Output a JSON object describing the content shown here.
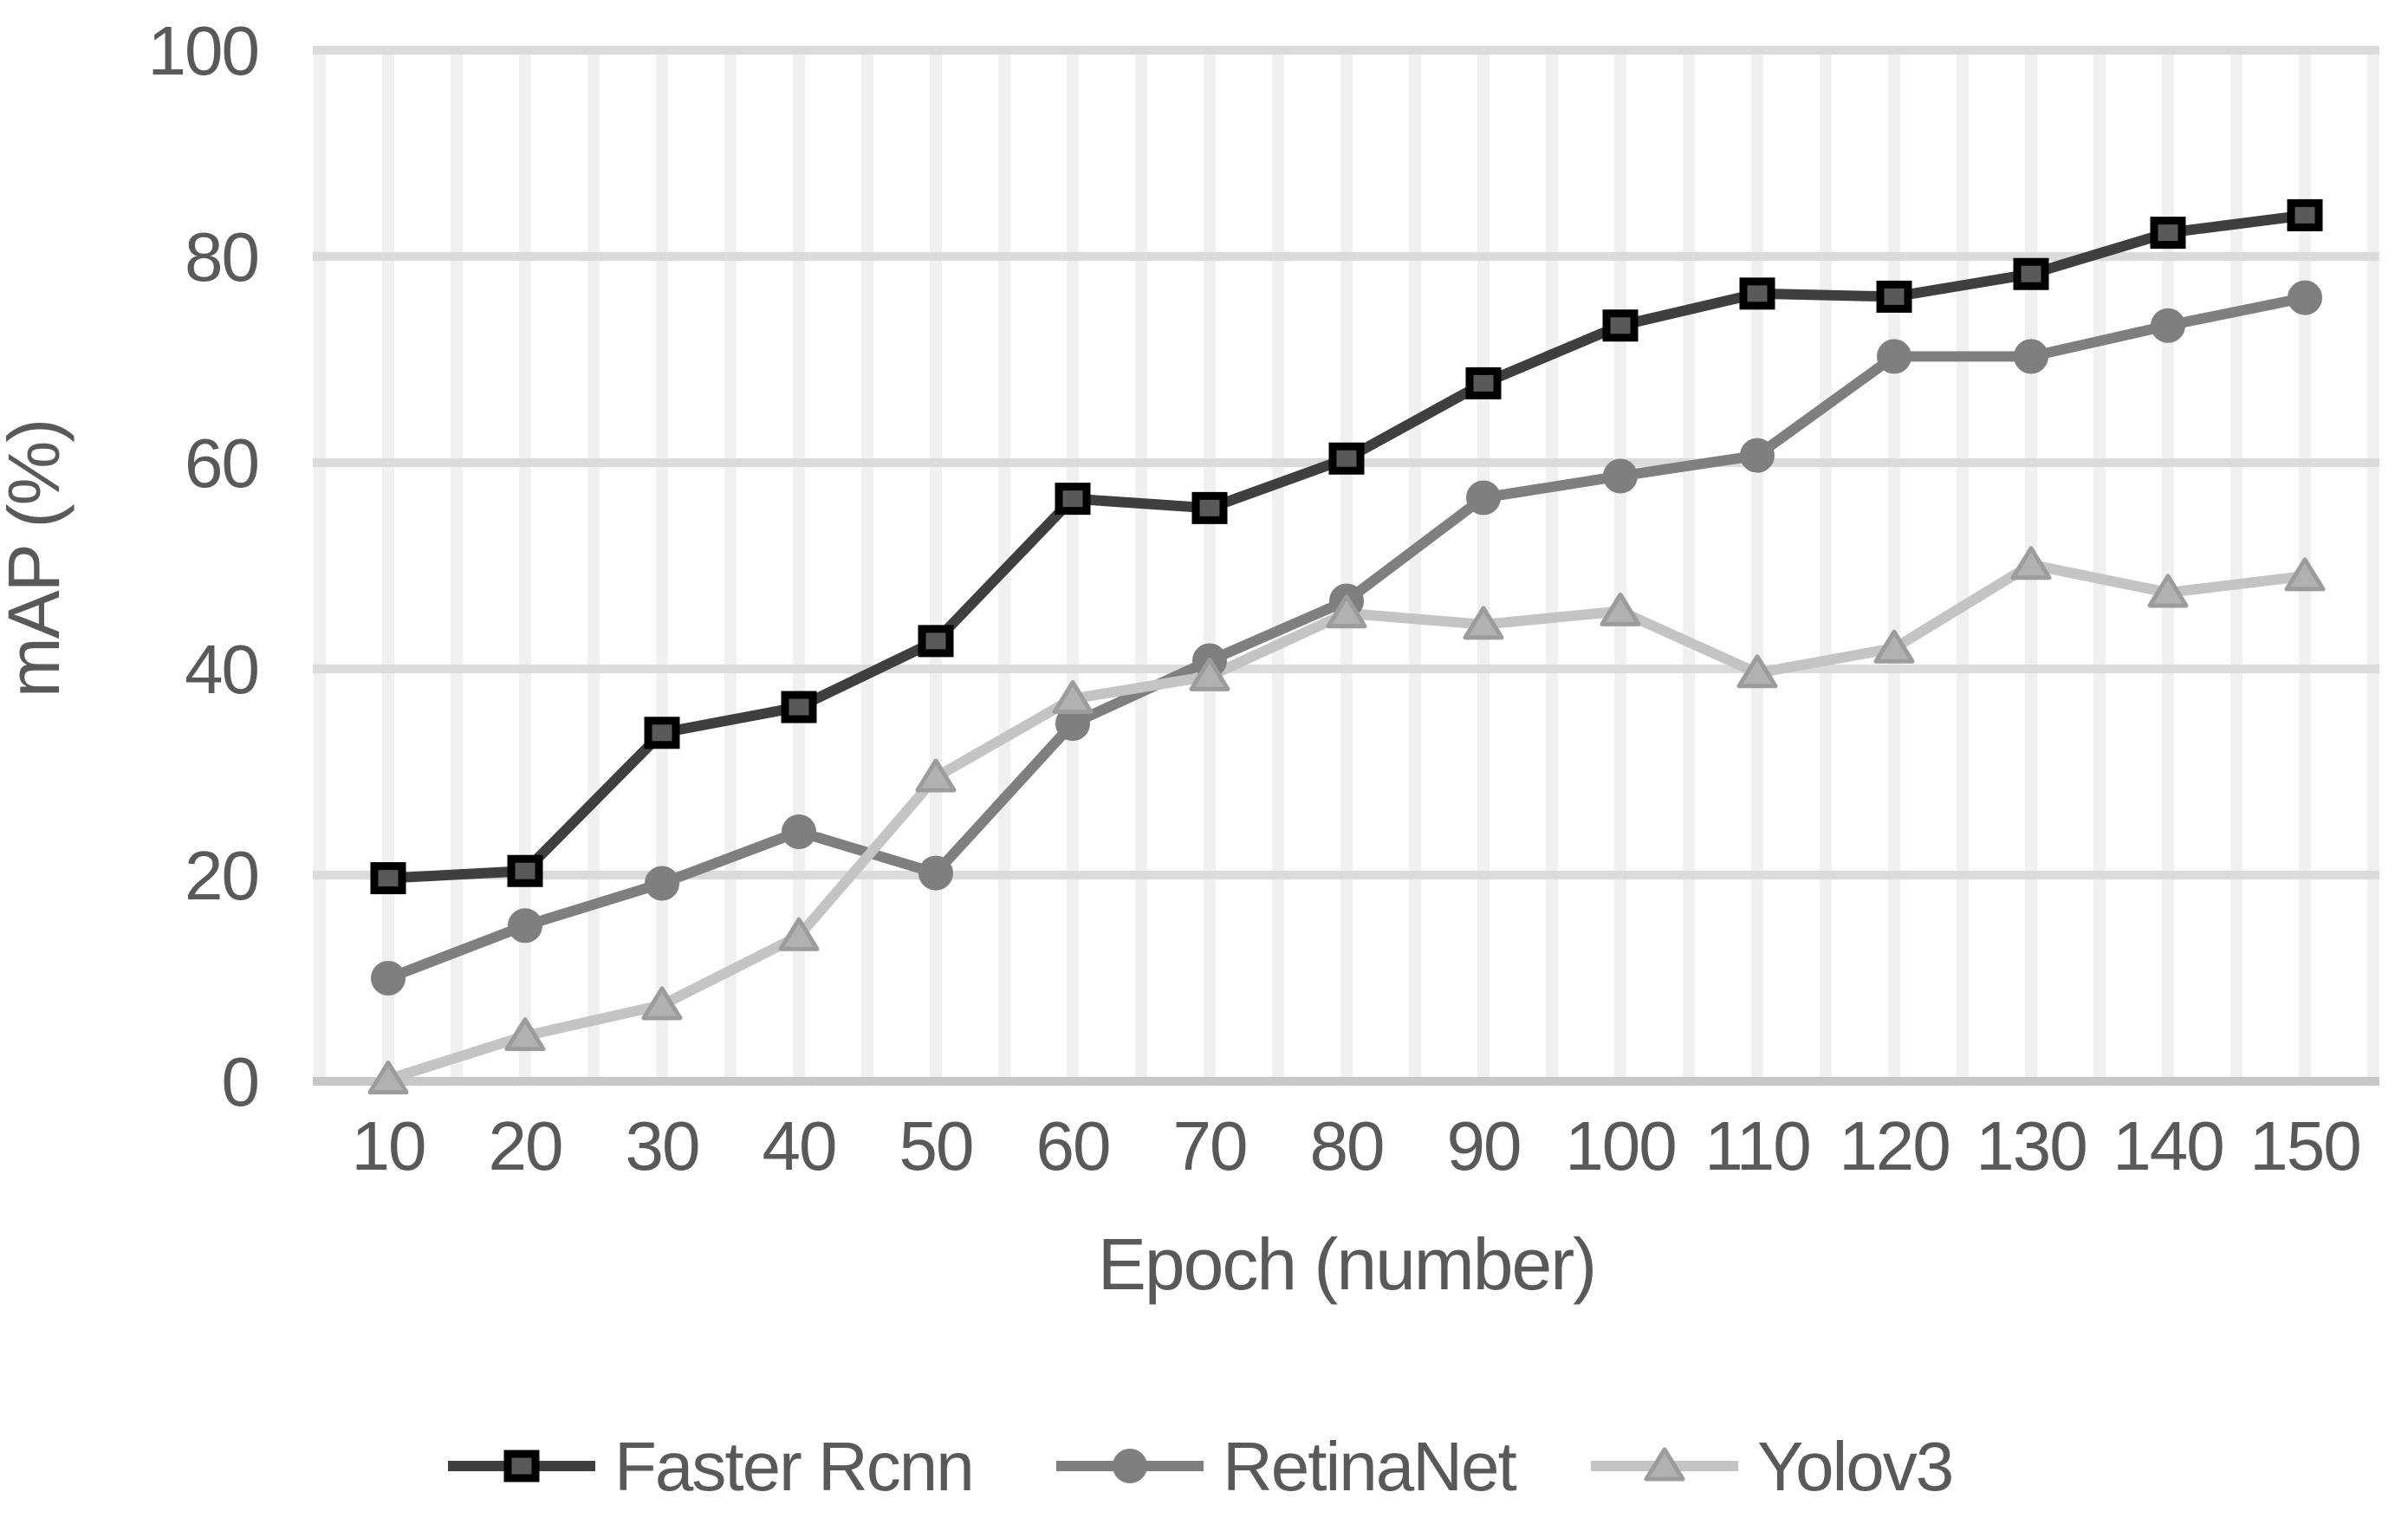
{
  "chart_data": {
    "type": "line",
    "title": "",
    "xlabel": "Epoch (number)",
    "ylabel": "mAP (%)",
    "x": [
      10,
      20,
      30,
      40,
      50,
      60,
      70,
      80,
      90,
      100,
      110,
      120,
      130,
      140,
      150
    ],
    "y_ticks": [
      0,
      20,
      40,
      60,
      80,
      100
    ],
    "ylim": [
      0,
      100
    ],
    "grid": true,
    "minor_x_grid_step": 5,
    "legend_position": "bottom",
    "colors": {
      "background": "#ffffff",
      "text": "#595959",
      "h_gridline": "#dbdbdb",
      "v_gridline": "#f1f0f1",
      "x_axis_line": "#c7c7c7"
    },
    "series": [
      {
        "name": "Faster Rcnn",
        "marker": "square",
        "line_color": "#3f3f3f",
        "marker_fill": "#595959",
        "marker_stroke": "#000000",
        "values": [
          19.7,
          20.4,
          33.8,
          36.3,
          42.7,
          56.5,
          55.6,
          60.4,
          67.7,
          73.3,
          76.4,
          76.1,
          78.3,
          82.3,
          84.0
        ]
      },
      {
        "name": "RetinaNet",
        "marker": "circle",
        "line_color": "#7f7f7f",
        "marker_fill": "#7f7f7f",
        "marker_stroke": "#7f7f7f",
        "values": [
          10.0,
          15.1,
          19.2,
          24.2,
          20.2,
          34.7,
          40.8,
          46.6,
          56.6,
          58.7,
          60.7,
          70.3,
          70.3,
          73.3,
          76.0
        ]
      },
      {
        "name": "Yolov3",
        "marker": "triangle",
        "line_color": "#c4c4c4",
        "marker_fill": "#b2b0b0",
        "marker_stroke": "#9d9b9b",
        "values": [
          0.2,
          4.4,
          7.4,
          14.1,
          29.5,
          37.1,
          39.3,
          45.4,
          44.3,
          45.6,
          39.6,
          42.0,
          50.1,
          47.4,
          49.0
        ]
      }
    ]
  }
}
